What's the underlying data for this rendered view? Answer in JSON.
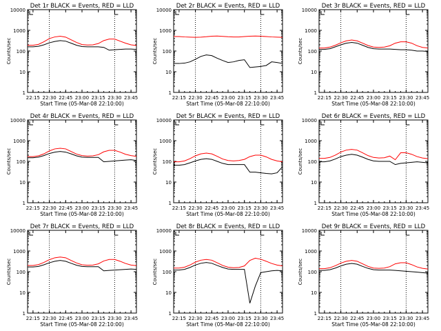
{
  "colors": {
    "events": "#000000",
    "lld": "#ff0000",
    "axis": "#000000",
    "marker": "#000000"
  },
  "chart_data": [
    {
      "type": "line",
      "title": "Det 1r BLACK = Events, RED = LLD",
      "xlabel": "Start Time (05-Mar-08 22:10:00)",
      "ylabel": "Counts/sec",
      "y_scale": "log",
      "ylim": [
        1,
        10000
      ],
      "x_ticks": [
        "22:15",
        "22:30",
        "22:45",
        "23:00",
        "23:15",
        "23:30",
        "23:45"
      ],
      "y_ticks": [
        "1",
        "10",
        "100",
        "1000",
        "10000"
      ],
      "vlines_minutes_from_start": [
        20,
        80
      ],
      "x_minutes_from_start": [
        0,
        5,
        10,
        15,
        20,
        25,
        30,
        35,
        40,
        45,
        50,
        55,
        60,
        65,
        70,
        75,
        80,
        85,
        90,
        95,
        100
      ],
      "series": [
        {
          "name": "Events",
          "values": [
            160,
            160,
            170,
            200,
            250,
            290,
            320,
            300,
            240,
            190,
            165,
            160,
            160,
            160,
            150,
            110,
            115,
            120,
            125,
            125,
            120
          ]
        },
        {
          "name": "LLD",
          "values": [
            190,
            190,
            210,
            280,
            400,
            480,
            520,
            470,
            350,
            260,
            205,
            195,
            200,
            230,
            320,
            380,
            380,
            300,
            240,
            200,
            185
          ]
        }
      ]
    },
    {
      "type": "line",
      "title": "Det 2r BLACK = Events, RED = LLD",
      "xlabel": "Start Time (05-Mar-08 22:10:00)",
      "ylabel": "Counts/sec",
      "y_scale": "log",
      "ylim": [
        1,
        10000
      ],
      "x_ticks": [
        "22:15",
        "22:30",
        "22:45",
        "23:00",
        "23:15",
        "23:30",
        "23:45"
      ],
      "y_ticks": [
        "1",
        "10",
        "100",
        "1000",
        "10000"
      ],
      "vlines_minutes_from_start": [
        20,
        80
      ],
      "x_minutes_from_start": [
        0,
        5,
        10,
        15,
        20,
        25,
        30,
        35,
        40,
        45,
        50,
        55,
        60,
        65,
        70,
        75,
        80,
        85,
        90,
        95,
        100
      ],
      "series": [
        {
          "name": "Events",
          "values": [
            25,
            25,
            26,
            30,
            40,
            55,
            65,
            60,
            45,
            35,
            28,
            30,
            35,
            38,
            16,
            17,
            18,
            20,
            30,
            28,
            25
          ]
        },
        {
          "name": "LLD",
          "values": [
            500,
            500,
            480,
            470,
            460,
            470,
            490,
            520,
            530,
            510,
            490,
            480,
            480,
            500,
            520,
            530,
            520,
            500,
            480,
            470,
            460
          ]
        }
      ]
    },
    {
      "type": "line",
      "title": "Det 3r BLACK = Events, RED = LLD",
      "xlabel": "Start Time (05-Mar-08 22:10:00)",
      "ylabel": "Counts/sec",
      "y_scale": "log",
      "ylim": [
        1,
        10000
      ],
      "x_ticks": [
        "22:15",
        "22:30",
        "22:45",
        "23:00",
        "23:15",
        "23:30",
        "23:45"
      ],
      "y_ticks": [
        "1",
        "10",
        "100",
        "1000",
        "10000"
      ],
      "vlines_minutes_from_start": [
        20,
        80
      ],
      "x_minutes_from_start": [
        0,
        5,
        10,
        15,
        20,
        25,
        30,
        35,
        40,
        45,
        50,
        55,
        60,
        65,
        70,
        75,
        80,
        85,
        90,
        95,
        100
      ],
      "series": [
        {
          "name": "Events",
          "values": [
            120,
            120,
            130,
            160,
            200,
            240,
            260,
            240,
            190,
            150,
            130,
            125,
            125,
            125,
            120,
            115,
            115,
            110,
            100,
            100,
            95
          ]
        },
        {
          "name": "LLD",
          "values": [
            140,
            140,
            155,
            190,
            250,
            310,
            340,
            310,
            240,
            185,
            155,
            150,
            155,
            180,
            240,
            280,
            280,
            240,
            180,
            150,
            140
          ]
        }
      ]
    },
    {
      "type": "line",
      "title": "Det 4r BLACK = Events, RED = LLD",
      "xlabel": "Start Time (05-Mar-08 22:10:00)",
      "ylabel": "Counts/sec",
      "y_scale": "log",
      "ylim": [
        1,
        10000
      ],
      "x_ticks": [
        "22:15",
        "22:30",
        "22:45",
        "23:00",
        "23:15",
        "23:30",
        "23:45"
      ],
      "y_ticks": [
        "1",
        "10",
        "100",
        "1000",
        "10000"
      ],
      "vlines_minutes_from_start": [
        20,
        80
      ],
      "x_minutes_from_start": [
        0,
        5,
        10,
        15,
        20,
        25,
        30,
        35,
        40,
        45,
        50,
        55,
        60,
        65,
        70,
        75,
        80,
        85,
        90,
        95,
        100
      ],
      "series": [
        {
          "name": "Events",
          "values": [
            150,
            150,
            160,
            190,
            240,
            280,
            300,
            280,
            230,
            185,
            160,
            155,
            155,
            155,
            95,
            100,
            105,
            110,
            115,
            120,
            110
          ]
        },
        {
          "name": "LLD",
          "values": [
            170,
            170,
            185,
            230,
            320,
            400,
            430,
            400,
            300,
            225,
            190,
            180,
            185,
            210,
            290,
            340,
            340,
            280,
            220,
            190,
            175
          ]
        }
      ]
    },
    {
      "type": "line",
      "title": "Det 5r BLACK = Events, RED = LLD",
      "xlabel": "Start Time (05-Mar-08 22:10:00)",
      "ylabel": "Counts/sec",
      "y_scale": "log",
      "ylim": [
        1,
        10000
      ],
      "x_ticks": [
        "22:15",
        "22:30",
        "22:45",
        "23:00",
        "23:15",
        "23:30",
        "23:45"
      ],
      "y_ticks": [
        "1",
        "10",
        "100",
        "1000",
        "10000"
      ],
      "vlines_minutes_from_start": [
        20,
        80
      ],
      "x_minutes_from_start": [
        0,
        5,
        10,
        15,
        20,
        25,
        30,
        35,
        40,
        45,
        50,
        55,
        60,
        65,
        70,
        75,
        80,
        85,
        90,
        95,
        100
      ],
      "series": [
        {
          "name": "Events",
          "values": [
            65,
            65,
            70,
            85,
            105,
            125,
            135,
            125,
            100,
            80,
            70,
            70,
            70,
            70,
            30,
            30,
            28,
            26,
            25,
            28,
            55
          ]
        },
        {
          "name": "LLD",
          "values": [
            95,
            95,
            105,
            135,
            185,
            230,
            250,
            230,
            175,
            130,
            110,
            105,
            110,
            125,
            170,
            200,
            200,
            165,
            125,
            105,
            95
          ]
        }
      ]
    },
    {
      "type": "line",
      "title": "Det 6r BLACK = Events, RED = LLD",
      "xlabel": "Start Time (05-Mar-08 22:10:00)",
      "ylabel": "Counts/sec",
      "y_scale": "log",
      "ylim": [
        1,
        10000
      ],
      "x_ticks": [
        "22:15",
        "22:30",
        "22:45",
        "23:00",
        "23:15",
        "23:30",
        "23:45"
      ],
      "y_ticks": [
        "1",
        "10",
        "100",
        "1000",
        "10000"
      ],
      "vlines_minutes_from_start": [
        20,
        80
      ],
      "x_minutes_from_start": [
        0,
        5,
        10,
        15,
        20,
        25,
        30,
        35,
        40,
        45,
        50,
        55,
        60,
        65,
        70,
        75,
        80,
        85,
        90,
        95,
        100
      ],
      "series": [
        {
          "name": "Events",
          "values": [
            95,
            95,
            105,
            130,
            170,
            200,
            220,
            200,
            160,
            125,
            105,
            100,
            100,
            100,
            70,
            80,
            85,
            90,
            95,
            90,
            85
          ]
        },
        {
          "name": "LLD",
          "values": [
            140,
            140,
            155,
            200,
            280,
            350,
            380,
            350,
            260,
            190,
            155,
            145,
            150,
            180,
            120,
            260,
            260,
            220,
            170,
            145,
            135
          ]
        }
      ]
    },
    {
      "type": "line",
      "title": "Det 7r BLACK = Events, RED = LLD",
      "xlabel": "Start Time (05-Mar-08 22:10:00)",
      "ylabel": "Counts/sec",
      "y_scale": "log",
      "ylim": [
        1,
        10000
      ],
      "x_ticks": [
        "22:15",
        "22:30",
        "22:45",
        "23:00",
        "23:15",
        "23:30",
        "23:45"
      ],
      "y_ticks": [
        "1",
        "10",
        "100",
        "1000",
        "10000"
      ],
      "vlines_minutes_from_start": [
        20,
        80
      ],
      "x_minutes_from_start": [
        0,
        5,
        10,
        15,
        20,
        25,
        30,
        35,
        40,
        45,
        50,
        55,
        60,
        65,
        70,
        75,
        80,
        85,
        90,
        95,
        100
      ],
      "series": [
        {
          "name": "Events",
          "values": [
            170,
            170,
            180,
            215,
            270,
            320,
            350,
            320,
            255,
            205,
            180,
            175,
            175,
            175,
            110,
            115,
            120,
            125,
            130,
            135,
            130
          ]
        },
        {
          "name": "LLD",
          "values": [
            200,
            200,
            220,
            280,
            380,
            470,
            510,
            470,
            350,
            265,
            215,
            205,
            210,
            240,
            330,
            390,
            390,
            320,
            250,
            210,
            195
          ]
        }
      ]
    },
    {
      "type": "line",
      "title": "Det 8r BLACK = Events, RED = LLD",
      "xlabel": "Start Time (05-Mar-08 22:10:00)",
      "ylabel": "Counts/sec",
      "y_scale": "log",
      "ylim": [
        1,
        10000
      ],
      "x_ticks": [
        "22:15",
        "22:30",
        "22:45",
        "23:00",
        "23:15",
        "23:30",
        "23:45"
      ],
      "y_ticks": [
        "1",
        "10",
        "100",
        "1000",
        "10000"
      ],
      "vlines_minutes_from_start": [
        20,
        80
      ],
      "x_minutes_from_start": [
        0,
        5,
        10,
        15,
        20,
        25,
        30,
        35,
        40,
        45,
        50,
        55,
        60,
        65,
        70,
        75,
        80,
        85,
        90,
        95,
        100
      ],
      "series": [
        {
          "name": "Events",
          "values": [
            120,
            120,
            130,
            160,
            210,
            255,
            280,
            255,
            200,
            160,
            135,
            130,
            130,
            130,
            3,
            20,
            90,
            100,
            110,
            115,
            110
          ]
        },
        {
          "name": "LLD",
          "values": [
            150,
            150,
            165,
            210,
            290,
            360,
            390,
            360,
            270,
            200,
            165,
            155,
            160,
            190,
            350,
            450,
            400,
            320,
            250,
            210,
            190
          ]
        }
      ]
    },
    {
      "type": "line",
      "title": "Det 9r BLACK = Events, RED = LLD",
      "xlabel": "Start Time (05-Mar-08 22:10:00)",
      "ylabel": "Counts/sec",
      "y_scale": "log",
      "ylim": [
        1,
        10000
      ],
      "x_ticks": [
        "22:15",
        "22:30",
        "22:45",
        "23:00",
        "23:15",
        "23:30",
        "23:45"
      ],
      "y_ticks": [
        "1",
        "10",
        "100",
        "1000",
        "10000"
      ],
      "vlines_minutes_from_start": [
        20,
        80
      ],
      "x_minutes_from_start": [
        0,
        5,
        10,
        15,
        20,
        25,
        30,
        35,
        40,
        45,
        50,
        55,
        60,
        65,
        70,
        75,
        80,
        85,
        90,
        95,
        100
      ],
      "series": [
        {
          "name": "Events",
          "values": [
            115,
            115,
            125,
            150,
            190,
            230,
            250,
            230,
            180,
            145,
            125,
            120,
            120,
            120,
            115,
            110,
            105,
            100,
            95,
            90,
            85
          ]
        },
        {
          "name": "LLD",
          "values": [
            140,
            140,
            155,
            195,
            260,
            320,
            350,
            320,
            240,
            180,
            150,
            145,
            150,
            175,
            240,
            270,
            270,
            220,
            170,
            145,
            135
          ]
        }
      ]
    }
  ]
}
